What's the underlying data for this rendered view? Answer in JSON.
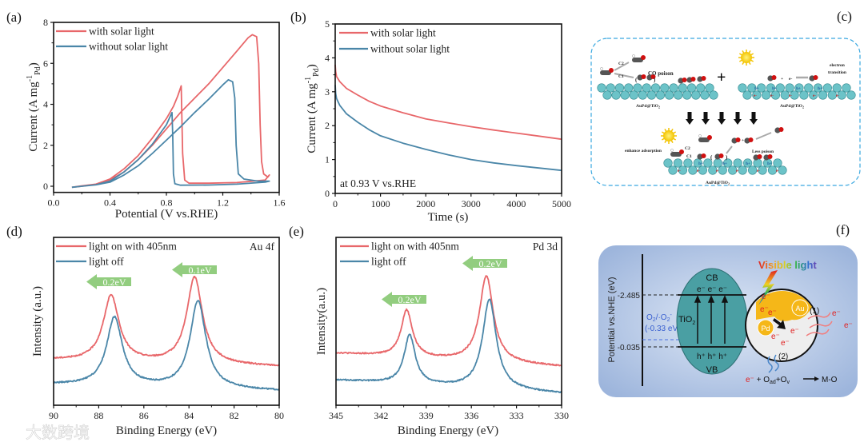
{
  "panel_labels": [
    "(a)",
    "(b)",
    "(c)",
    "(d)",
    "(e)",
    "(f)"
  ],
  "colors": {
    "with_light": "#e8676a",
    "without_light": "#4a86a8",
    "shift_arrow": "#92cd7f"
  },
  "chart_data": [
    {
      "id": "a",
      "type": "line",
      "title": "",
      "xlabel": "Potential (V vs.RHE)",
      "ylabel_parts": [
        "Current (A mg",
        "-1",
        "Pd",
        ")"
      ],
      "xlim": [
        0,
        1.6
      ],
      "ylim": [
        -0.3,
        8
      ],
      "xticks": [
        0,
        0.4,
        0.8,
        1.2,
        1.6
      ],
      "xtick_labels": [
        "0.0",
        "0.4",
        "0.8",
        "1.2",
        "1.6"
      ],
      "yticks": [
        0,
        2,
        4,
        6,
        8
      ],
      "ytick_labels": [
        "0",
        "2",
        "4",
        "6",
        "8"
      ],
      "legend_position": "top-left",
      "series": [
        {
          "name": "with solar light",
          "color": "#e8676a",
          "x": [
            0.13,
            0.2,
            0.3,
            0.4,
            0.5,
            0.6,
            0.7,
            0.8,
            0.9,
            1.0,
            1.1,
            1.2,
            1.3,
            1.38,
            1.41,
            1.44,
            1.455,
            1.465,
            1.475,
            1.49,
            1.52,
            1.53,
            1.5,
            1.3,
            1.1,
            0.96,
            0.93,
            0.915,
            0.905,
            0.88,
            0.85,
            0.8,
            0.7,
            0.6,
            0.5,
            0.4,
            0.3,
            0.2,
            0.13
          ],
          "y": [
            -0.05,
            0.02,
            0.1,
            0.3,
            0.7,
            1.3,
            2.0,
            2.8,
            3.6,
            4.3,
            5.0,
            5.8,
            6.6,
            7.25,
            7.4,
            7.3,
            6.0,
            3.0,
            1.2,
            0.6,
            0.45,
            0.55,
            0.3,
            0.18,
            0.15,
            0.15,
            0.3,
            1.6,
            4.9,
            4.4,
            3.9,
            3.3,
            2.35,
            1.5,
            0.85,
            0.35,
            0.1,
            0.0,
            -0.05
          ]
        },
        {
          "name": "without solar light",
          "color": "#4a86a8",
          "x": [
            0.13,
            0.2,
            0.3,
            0.4,
            0.5,
            0.6,
            0.7,
            0.8,
            0.9,
            1.0,
            1.1,
            1.2,
            1.24,
            1.27,
            1.285,
            1.295,
            1.31,
            1.35,
            1.45,
            1.53,
            1.5,
            1.3,
            1.1,
            0.9,
            0.86,
            0.85,
            0.845,
            0.84,
            0.8,
            0.7,
            0.6,
            0.5,
            0.4,
            0.3,
            0.2,
            0.13
          ],
          "y": [
            -0.05,
            0.0,
            0.07,
            0.2,
            0.55,
            1.0,
            1.6,
            2.25,
            2.9,
            3.6,
            4.25,
            4.95,
            5.2,
            5.1,
            4.3,
            2.0,
            0.6,
            0.35,
            0.25,
            0.25,
            0.2,
            0.1,
            0.06,
            0.05,
            0.12,
            0.6,
            2.5,
            3.6,
            3.0,
            2.05,
            1.3,
            0.7,
            0.25,
            0.07,
            0.0,
            -0.05
          ]
        }
      ],
      "annotations": []
    },
    {
      "id": "b",
      "type": "line",
      "title": "",
      "xlabel": "Time (s)",
      "ylabel_parts": [
        "Current (A mg",
        "-1",
        "Pd",
        ")"
      ],
      "xlim": [
        0,
        5000
      ],
      "ylim": [
        0,
        5
      ],
      "xticks": [
        0,
        1000,
        2000,
        3000,
        4000,
        5000
      ],
      "xtick_labels": [
        "0",
        "1000",
        "2000",
        "3000",
        "4000",
        "5000"
      ],
      "yticks": [
        0,
        1,
        2,
        3,
        4,
        5
      ],
      "ytick_labels": [
        "0",
        "1",
        "2",
        "3",
        "4",
        "5"
      ],
      "legend_position": "top-left",
      "series": [
        {
          "name": "with solar light",
          "color": "#e8676a",
          "x": [
            0,
            10,
            30,
            100,
            250,
            500,
            750,
            1000,
            1500,
            2000,
            2500,
            3000,
            3500,
            4000,
            4500,
            5000
          ],
          "y": [
            3.8,
            3.6,
            3.45,
            3.3,
            3.1,
            2.9,
            2.72,
            2.58,
            2.38,
            2.2,
            2.08,
            1.97,
            1.87,
            1.78,
            1.69,
            1.6
          ]
        },
        {
          "name": "without solar light",
          "color": "#4a86a8",
          "x": [
            0,
            10,
            30,
            100,
            250,
            500,
            750,
            1000,
            1500,
            2000,
            2500,
            3000,
            3500,
            4000,
            4500,
            5000
          ],
          "y": [
            3.2,
            2.95,
            2.8,
            2.6,
            2.35,
            2.1,
            1.88,
            1.7,
            1.48,
            1.3,
            1.14,
            1.0,
            0.9,
            0.82,
            0.75,
            0.68
          ]
        }
      ],
      "annotations": [
        {
          "text": "at 0.93 V vs.RHE"
        }
      ]
    },
    {
      "id": "d",
      "type": "line",
      "title": "",
      "xlabel": "Binding Energy (eV)",
      "ylabel_parts": [
        "Intensity (a.u.)"
      ],
      "xlim": [
        90,
        80
      ],
      "ylim": [
        0,
        10
      ],
      "xticks": [
        90,
        88,
        86,
        84,
        82,
        80
      ],
      "xtick_labels": [
        "90",
        "88",
        "86",
        "84",
        "82",
        "80"
      ],
      "yticks": [],
      "ytick_labels": [],
      "legend_position": "top-left",
      "corner_label": "Au 4f",
      "series": [
        {
          "name": "light on with 405nm",
          "color": "#e8676a",
          "baseline": [
            2.7,
            2.3
          ],
          "peaks": [
            {
              "center": 87.45,
              "top": 6.6,
              "width": 0.42
            },
            {
              "center": 83.75,
              "top": 7.7,
              "width": 0.42
            }
          ]
        },
        {
          "name": "light off",
          "color": "#4a86a8",
          "baseline": [
            1.24,
            0.86
          ],
          "peaks": [
            {
              "center": 87.3,
              "top": 5.3,
              "width": 0.42
            },
            {
              "center": 83.6,
              "top": 6.3,
              "width": 0.42
            }
          ]
        }
      ],
      "annotations": [
        {
          "text": "0.2eV"
        },
        {
          "text": "0.1eV"
        }
      ]
    },
    {
      "id": "e",
      "type": "line",
      "title": "",
      "xlabel": "Binding Energy (eV)",
      "ylabel_parts": [
        "Intensity(a.u.)"
      ],
      "xlim": [
        345,
        330
      ],
      "ylim": [
        0,
        10
      ],
      "xticks": [
        345,
        342,
        339,
        336,
        333,
        330
      ],
      "xtick_labels": [
        "345",
        "342",
        "339",
        "336",
        "333",
        "330"
      ],
      "yticks": [],
      "ytick_labels": [],
      "legend_position": "top-left",
      "corner_label": "Pd 3d",
      "series": [
        {
          "name": "light on with 405nm",
          "color": "#e8676a",
          "baseline": [
            3.1,
            2.3
          ],
          "peaks": [
            {
              "center": 340.3,
              "top": 5.7,
              "width": 0.45
            },
            {
              "center": 335.0,
              "top": 7.8,
              "width": 0.55
            }
          ]
        },
        {
          "name": "light off",
          "color": "#4a86a8",
          "baseline": [
            1.5,
            0.7
          ],
          "peaks": [
            {
              "center": 340.1,
              "top": 4.2,
              "width": 0.45
            },
            {
              "center": 334.8,
              "top": 6.4,
              "width": 0.55
            }
          ]
        }
      ],
      "annotations": [
        {
          "text": "0.2eV"
        },
        {
          "text": "0.2eV"
        }
      ]
    }
  ],
  "diagram_c": {
    "co_poison": "CO poison",
    "plus": "+",
    "support": "AuPd@TiO",
    "support_sub": "2",
    "c2": "C2",
    "c1": "C1",
    "paren_open": "(",
    "paren_close": ")",
    "electron_transition_1": "electron",
    "electron_transition_2": "transition",
    "enhance_adsorption": "enhance adsorption",
    "less_poison": "Less poison",
    "hole": "h+",
    "electron": "e-",
    "dot_plus": "+"
  },
  "diagram_f": {
    "axis_label": "Potential vs.NHE (eV)",
    "level_cb": "-2.485",
    "level_vb": "-0.035",
    "redox_1a": "O",
    "redox_1b": "2",
    "redox_1c": "/·O",
    "redox_1d": "2",
    "redox_1e": "-",
    "redox_2": "(-0.33 eV)",
    "cb": "CB",
    "vb": "VB",
    "tio2": "TiO",
    "tio2_sub": "2",
    "electrons_cb": "e⁻  e⁻  e⁻",
    "holes_vb": "h⁺ h⁺ h⁺",
    "visible_light": "Visible light",
    "au": "Au",
    "pd": "Pd",
    "electron": "e⁻",
    "path1": "(1)",
    "path2": "(2)",
    "reaction_e": "e⁻",
    "reaction_plus": " + O",
    "reaction_ad": "ad",
    "reaction_ov": "+O",
    "reaction_v": "v",
    "reaction_product": "M-O"
  },
  "watermark": "大数跨境"
}
